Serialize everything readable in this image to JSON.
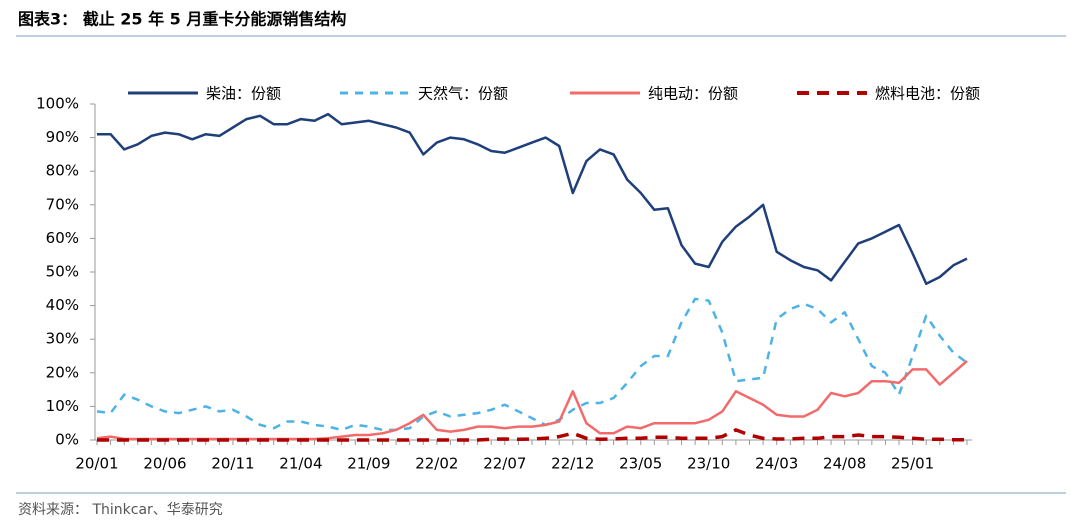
{
  "chart_data": {
    "type": "line",
    "title": "图表3：  截止 25 年 5 月重卡分能源销售结构",
    "source": "资料来源：  Thinkcar、华泰研究",
    "categories": [
      "20/01",
      null,
      null,
      null,
      null,
      "20/06",
      null,
      null,
      null,
      null,
      "20/11",
      null,
      null,
      null,
      null,
      "21/04",
      null,
      null,
      null,
      null,
      "21/09",
      null,
      null,
      null,
      null,
      "22/02",
      null,
      null,
      null,
      null,
      "22/07",
      null,
      null,
      null,
      null,
      "22/12",
      null,
      null,
      null,
      null,
      "23/05",
      null,
      null,
      null,
      null,
      "23/10",
      null,
      null,
      null,
      null,
      "24/03",
      null,
      null,
      null,
      null,
      "24/08",
      null,
      null,
      null,
      null,
      "25/01",
      null,
      null,
      null,
      null
    ],
    "ylim": [
      0,
      100
    ],
    "yticks": [
      {
        "value": 0,
        "label": "0%"
      },
      {
        "value": 10,
        "label": "10%"
      },
      {
        "value": 20,
        "label": "20%"
      },
      {
        "value": 30,
        "label": "30%"
      },
      {
        "value": 40,
        "label": "40%"
      },
      {
        "value": 50,
        "label": "50%"
      },
      {
        "value": 60,
        "label": "60%"
      },
      {
        "value": 70,
        "label": "70%"
      },
      {
        "value": 80,
        "label": "80%"
      },
      {
        "value": 90,
        "label": "90%"
      },
      {
        "value": 100,
        "label": "100%"
      }
    ],
    "grid": false,
    "legend": "top",
    "series": [
      {
        "name": "柴油：份额",
        "color": "#1f3f7a",
        "dash": "solid",
        "values": [
          91,
          91,
          86.5,
          88,
          90.5,
          91.5,
          91,
          89.5,
          91,
          90.5,
          93,
          95.5,
          96.5,
          94,
          94,
          95.5,
          95,
          97,
          94,
          94.5,
          95,
          94,
          93,
          91.5,
          85,
          88.5,
          90,
          89.5,
          88,
          86,
          85.5,
          87,
          88.5,
          90,
          87.5,
          73.5,
          83,
          86.5,
          85,
          77.5,
          73.5,
          68.5,
          69,
          58,
          52.5,
          51.5,
          59,
          63.5,
          66.5,
          70,
          56,
          53.5,
          51.5,
          50.5,
          47.5,
          53,
          58.5,
          60,
          62,
          64,
          55.5,
          46.5,
          48.5,
          52,
          54
        ]
      },
      {
        "name": "天然气：份额",
        "color": "#4db3e6",
        "dash": "dashed",
        "values": [
          8.5,
          8,
          13.5,
          12,
          10,
          8.5,
          8,
          9,
          10,
          8.5,
          9,
          7,
          4.5,
          3.5,
          5.5,
          5.5,
          4.5,
          4,
          3,
          4.5,
          4,
          3,
          3,
          3.5,
          7,
          8.5,
          7,
          7.5,
          8,
          9,
          10.5,
          8.5,
          6.5,
          4.5,
          6,
          9,
          11,
          11,
          12.5,
          17,
          22,
          25,
          25,
          35,
          42,
          41.5,
          32,
          17.5,
          18,
          18.5,
          36,
          39,
          40.5,
          39,
          35,
          38,
          30,
          22,
          20,
          13.5,
          25,
          37,
          31,
          26,
          23
        ]
      },
      {
        "name": "纯电动：份额",
        "color": "#f26b6b",
        "dash": "solid",
        "values": [
          0.5,
          1,
          0.3,
          0.3,
          0.3,
          0.3,
          0.3,
          0.3,
          0.3,
          0.3,
          0.3,
          0.3,
          0.3,
          0.3,
          0.3,
          0.3,
          0.3,
          0.5,
          1,
          1.5,
          1.5,
          2,
          3,
          5,
          7.5,
          3,
          2.5,
          3,
          4,
          4,
          3.5,
          4,
          4,
          4.5,
          5.5,
          14.5,
          5,
          2,
          2,
          4,
          3.5,
          5,
          5,
          5,
          5,
          6,
          8.5,
          14.5,
          12.5,
          10.5,
          7.5,
          7,
          7,
          9,
          14,
          13,
          14,
          17.5,
          17.5,
          17,
          21,
          21,
          16.5,
          20,
          23.5
        ]
      },
      {
        "name": "燃料电池：份额",
        "color": "#b00000",
        "dash": "dashed",
        "values": [
          0,
          0,
          0,
          0,
          0,
          0,
          0,
          0,
          0,
          0,
          0,
          0,
          0,
          0,
          0,
          0,
          0,
          0,
          0,
          0,
          0,
          0,
          0,
          0,
          0,
          0,
          0,
          0,
          0,
          0.2,
          0.3,
          0.2,
          0.3,
          0.5,
          1,
          2,
          0.5,
          0.2,
          0.3,
          0.5,
          0.5,
          0.8,
          0.8,
          0.5,
          0.5,
          0.5,
          1,
          3,
          1.5,
          0.5,
          0.3,
          0.3,
          0.5,
          0.5,
          1,
          1,
          1.5,
          1,
          1,
          0.8,
          0.5,
          0.2,
          0.2,
          0.1,
          0.1
        ]
      }
    ]
  }
}
